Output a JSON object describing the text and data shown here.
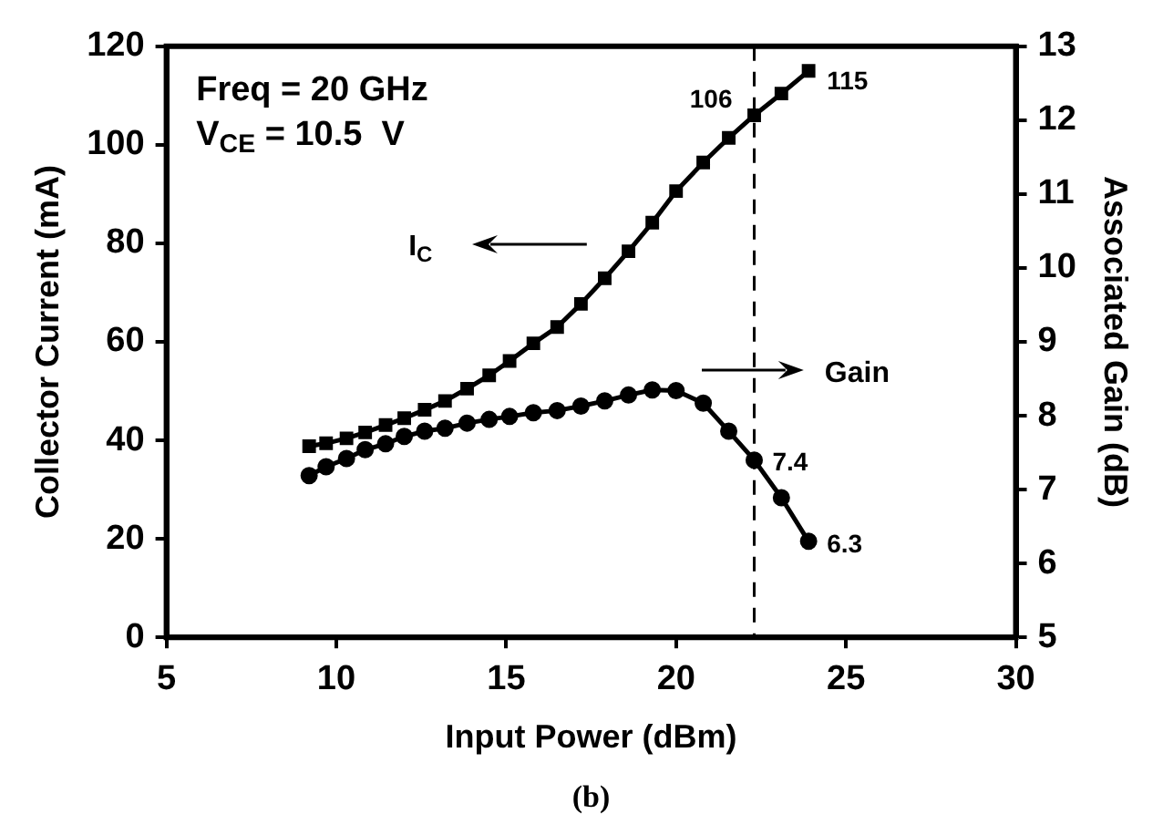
{
  "chart_data": {
    "type": "line",
    "xlabel": "Input Power (dBm)",
    "ylabel": "Collector Current (mA)",
    "y2label": "Associated Gain (dB)",
    "annotations": [
      "Freq = 20 GHz",
      "V$_{CE}$ = 10.5  V",
      "I$_{C}$",
      "Gain",
      "(b)"
    ],
    "x": [
      9.2,
      9.7,
      10.3,
      10.85,
      11.45,
      12.0,
      12.6,
      13.2,
      13.85,
      14.5,
      15.1,
      15.8,
      16.5,
      17.2,
      17.9,
      18.6,
      19.3,
      20.0,
      20.8,
      21.55,
      22.3,
      23.1,
      23.9
    ],
    "series": [
      {
        "color": "#000000",
        "marker": "square",
        "values": [
          38.8,
          39.4,
          40.4,
          41.6,
          43.1,
          44.5,
          46.2,
          48,
          50.5,
          53.2,
          56.1,
          59.7,
          63,
          67.7,
          72.9,
          78.4,
          84.2,
          90.6,
          96.4,
          101.4,
          106,
          110.4,
          115
        ],
        "value_labels": [
          null,
          null,
          null,
          null,
          null,
          null,
          null,
          null,
          null,
          null,
          null,
          null,
          null,
          null,
          null,
          null,
          null,
          null,
          null,
          null,
          "106",
          null,
          "115"
        ]
      },
      {
        "color": "#000000",
        "marker": "circle",
        "axis": "y2",
        "values": [
          7.19,
          7.31,
          7.42,
          7.54,
          7.62,
          7.72,
          7.79,
          7.83,
          7.9,
          7.95,
          7.99,
          8.04,
          8.07,
          8.13,
          8.2,
          8.28,
          8.35,
          8.34,
          8.17,
          7.79,
          7.4,
          6.89,
          6.3
        ],
        "value_labels": [
          null,
          null,
          null,
          null,
          null,
          null,
          null,
          null,
          null,
          null,
          null,
          null,
          null,
          null,
          null,
          null,
          null,
          null,
          null,
          null,
          "7.4",
          null,
          "6.3"
        ]
      }
    ],
    "xlim": [
      5,
      30
    ],
    "xticks": [
      5,
      10,
      15,
      20,
      25,
      30
    ],
    "ylim": [
      0,
      120
    ],
    "yticks": [
      0,
      20,
      40,
      60,
      80,
      100,
      120
    ],
    "y2lim": [
      5,
      13
    ],
    "y2ticks": [
      5,
      6,
      7,
      8,
      9,
      10,
      11,
      12,
      13
    ],
    "ref_lines": [
      {
        "axis": "x",
        "value": 22.3,
        "color": "#000000",
        "line_style": "dashed"
      }
    ],
    "grid": false,
    "legend": false
  }
}
